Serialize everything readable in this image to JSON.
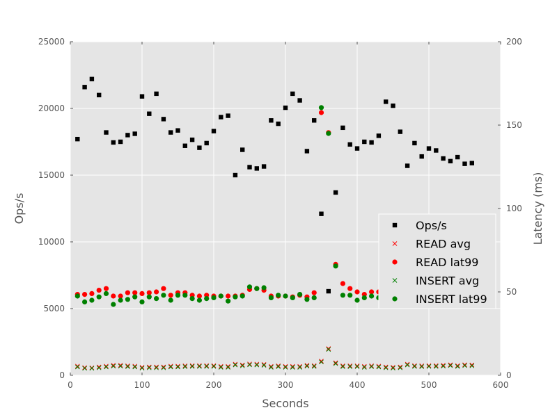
{
  "chart_data": {
    "type": "scatter",
    "title": "",
    "xlabel": "Seconds",
    "ylabel": "Ops/s",
    "y2label": "Latency (ms)",
    "xlim": [
      0,
      600
    ],
    "ylim": [
      0,
      25000
    ],
    "y2lim": [
      0,
      200
    ],
    "xticks": [
      "0",
      "100",
      "200",
      "300",
      "400",
      "500",
      "600"
    ],
    "yticks": [
      "0",
      "5000",
      "10000",
      "15000",
      "20000",
      "25000"
    ],
    "y2ticks": [
      "0",
      "50",
      "100",
      "150",
      "200"
    ],
    "grid": true,
    "background": "#e5e5e5",
    "legend_position": "lower-right",
    "x": [
      10,
      20,
      30,
      40,
      50,
      60,
      70,
      80,
      90,
      100,
      110,
      120,
      130,
      140,
      150,
      160,
      170,
      180,
      190,
      200,
      210,
      220,
      230,
      240,
      250,
      260,
      270,
      280,
      290,
      300,
      310,
      320,
      330,
      340,
      350,
      360,
      370,
      380,
      390,
      400,
      410,
      420,
      430,
      440,
      450,
      460,
      470,
      480,
      490,
      500,
      510,
      520,
      530,
      540,
      550,
      560
    ],
    "series": [
      {
        "name": "Ops/s",
        "axis": "left",
        "marker": "square",
        "color": "#000000",
        "values": [
          17700,
          21600,
          22200,
          21000,
          18200,
          17450,
          17500,
          18000,
          18100,
          20900,
          19600,
          21100,
          19200,
          18200,
          18350,
          17200,
          17650,
          17050,
          17400,
          18300,
          19350,
          19450,
          15000,
          16900,
          15600,
          15500,
          15650,
          19100,
          18850,
          20050,
          21100,
          20600,
          16800,
          19100,
          12100,
          6300,
          13700,
          18550,
          17300,
          17000,
          17500,
          17450,
          17950,
          20500,
          20200,
          18250,
          15700,
          17400,
          16400,
          17000,
          16850,
          16250,
          16050,
          16350,
          15850,
          15900
        ]
      },
      {
        "name": "READ avg",
        "axis": "right",
        "marker": "x",
        "color": "#ff0000",
        "values": [
          5.5,
          4.6,
          4.5,
          5,
          5.5,
          6,
          6,
          5.7,
          5.5,
          4.8,
          5,
          5,
          5,
          5.5,
          5.5,
          5.7,
          5.8,
          5.8,
          5.8,
          5.8,
          5.3,
          5.3,
          6.7,
          6.2,
          6.8,
          6.7,
          6.5,
          5.3,
          5.7,
          5.3,
          5.3,
          5.3,
          6,
          5.8,
          8.5,
          16,
          7.5,
          5.7,
          5.7,
          5.7,
          5.3,
          5.7,
          5.5,
          5,
          4.8,
          5,
          6.7,
          5.8,
          5.7,
          5.8,
          5.8,
          6,
          6.3,
          5.8,
          6.3,
          6.2
        ]
      },
      {
        "name": "READ lat99",
        "axis": "right",
        "marker": "circle",
        "color": "#ff0000",
        "values": [
          48.5,
          48.5,
          49,
          51,
          52,
          47.5,
          47.5,
          49.5,
          49.5,
          49,
          49.5,
          50,
          52,
          48,
          49.5,
          49.5,
          48,
          47.5,
          48,
          47.5,
          47.5,
          47.5,
          47.5,
          48,
          51.5,
          52,
          51,
          47.5,
          47.5,
          47.5,
          47,
          48,
          47,
          49.5,
          157.5,
          145.5,
          66.5,
          55,
          52,
          50,
          48.5,
          50,
          50,
          47.5,
          47.5,
          47.5,
          47.5,
          47.5,
          47.5,
          47.5,
          47.5,
          47.5,
          47.5,
          47.5,
          47.5,
          47.5
        ]
      },
      {
        "name": "INSERT avg",
        "axis": "right",
        "marker": "x",
        "color": "#008000",
        "values": [
          5,
          4.2,
          4.2,
          4.5,
          5,
          5.5,
          5.5,
          5.2,
          5,
          4.3,
          4.5,
          4.5,
          4.5,
          5,
          5,
          5.2,
          5.3,
          5.3,
          5.3,
          5.3,
          4.8,
          4.8,
          6.2,
          5.7,
          6.3,
          6.2,
          6,
          4.8,
          5.2,
          4.8,
          4.8,
          4.8,
          5.5,
          5.3,
          8,
          15.5,
          7,
          5.2,
          5.2,
          5.2,
          4.8,
          5.2,
          5,
          4.5,
          4.3,
          4.5,
          6.2,
          5.3,
          5.2,
          5.3,
          5.3,
          5.5,
          5.8,
          5.3,
          5.8,
          5.7
        ]
      },
      {
        "name": "INSERT lat99",
        "axis": "right",
        "marker": "circle",
        "color": "#008000",
        "values": [
          47.5,
          44,
          45,
          47,
          49,
          42.5,
          45,
          45.5,
          47,
          44,
          47,
          46,
          48,
          45,
          48,
          48,
          46,
          45,
          46,
          46.5,
          47.5,
          44.5,
          47,
          47.5,
          53,
          52,
          52.5,
          46.5,
          48,
          47.5,
          46.5,
          48.5,
          45.5,
          46.5,
          160.5,
          145,
          65.5,
          48,
          48,
          45,
          46.5,
          47.5,
          46.5,
          46.5,
          46.5,
          46.5,
          46.5,
          46.5,
          46.5,
          46.5,
          46.5,
          46.5,
          46.5,
          46.5,
          46.5,
          46.5
        ]
      }
    ]
  }
}
